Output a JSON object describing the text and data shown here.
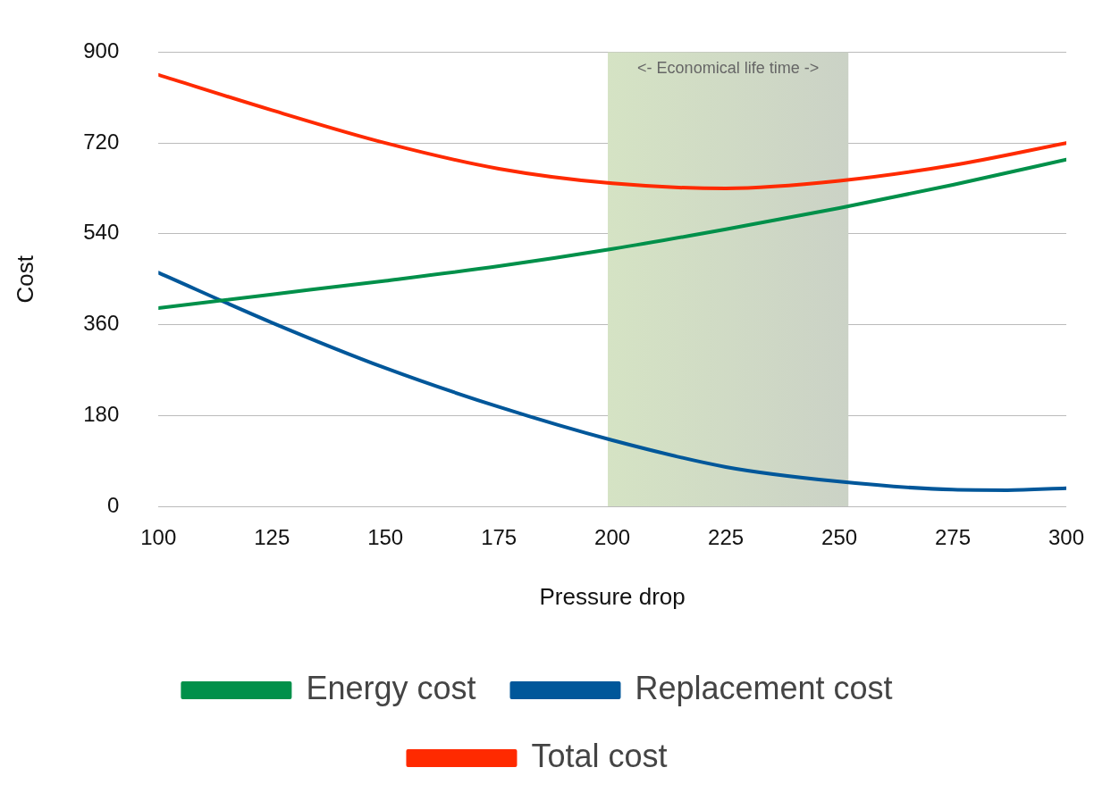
{
  "chart_data": {
    "type": "line",
    "xlabel": "Pressure drop",
    "ylabel": "Cost",
    "xlim": [
      100,
      300
    ],
    "xticks": [
      100,
      125,
      150,
      175,
      200,
      225,
      250,
      275,
      300
    ],
    "ylim": [
      0,
      900
    ],
    "yticks": [
      0,
      180,
      360,
      540,
      720,
      900
    ],
    "grid": "y",
    "legend": "bottom",
    "marker": "none",
    "line_style": "solid",
    "bands": [
      {
        "axis": "x",
        "from": 199,
        "to": 252,
        "label": "<- Economical life time ->",
        "color": "#cbd2c6"
      }
    ],
    "series": [
      {
        "name": "Energy cost",
        "color": "#00904a",
        "x": [
          100,
          125,
          150,
          175,
          200,
          225,
          250,
          275,
          300
        ],
        "values": [
          393,
          420,
          447,
          476,
          510,
          549,
          591,
          637,
          687
        ]
      },
      {
        "name": "Replacement cost",
        "color": "#00579a",
        "x": [
          100,
          125,
          150,
          175,
          200,
          225,
          250,
          275,
          287,
          300
        ],
        "values": [
          463,
          364,
          274,
          197,
          131,
          78,
          49,
          33,
          32,
          36
        ]
      },
      {
        "name": "Total cost",
        "color": "#ff2a00",
        "x": [
          100,
          125,
          150,
          175,
          200,
          225,
          250,
          275,
          300
        ],
        "values": [
          855,
          785,
          720,
          669,
          640,
          630,
          645,
          676,
          720
        ]
      }
    ]
  }
}
